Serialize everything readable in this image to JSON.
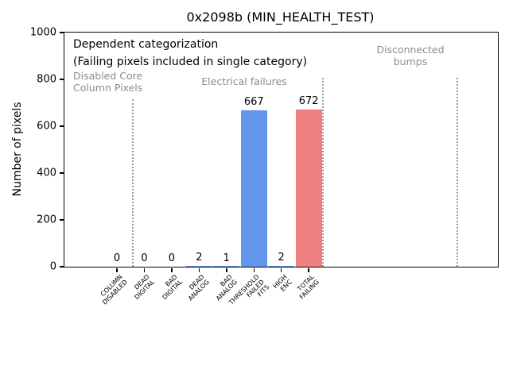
{
  "chart_data": {
    "type": "bar",
    "title": "0x2098b (MIN_HEALTH_TEST)",
    "xlabel": "",
    "ylabel": "Number of pixels",
    "ylim": [
      0,
      1000
    ],
    "yticks": [
      0,
      200,
      400,
      600,
      800,
      1000
    ],
    "grid": false,
    "legend": null,
    "categories": [
      "COLUMN\nDISABLED",
      "DEAD\nDIGITAL",
      "BAD\nDIGITAL",
      "DEAD\nANALOG",
      "BAD\nANALOG",
      "THRESHOLD\nFAILED\nFITS",
      "HIGH\nENC",
      "TOTAL\nFAILING"
    ],
    "values": [
      0,
      0,
      0,
      2,
      1,
      667,
      2,
      672
    ],
    "value_labels": [
      "0",
      "0",
      "0",
      "2",
      "1",
      "667",
      "2",
      "672"
    ],
    "bar_colors": [
      "#6495ed",
      "#6495ed",
      "#6495ed",
      "#6495ed",
      "#6495ed",
      "#6495ed",
      "#6495ed",
      "#f08080"
    ],
    "annotations": {
      "dependent_line1": "Dependent categorization",
      "dependent_line2": "(Failing pixels included in single category)",
      "region_disabled": "Disabled Core\nColumn Pixels",
      "region_electrical": "Electrical failures",
      "region_disconnected": "Disconnected\nbumps"
    },
    "colors": {
      "bar_blue": "#6495ed",
      "bar_red": "#f08080",
      "annotation_gray": "#8c8c8c",
      "separator_gray": "#9a9a9a"
    }
  }
}
